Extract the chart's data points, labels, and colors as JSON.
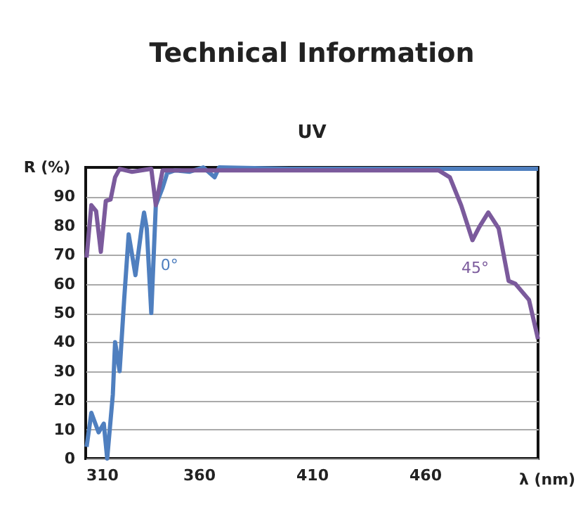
{
  "chart_data": {
    "type": "line",
    "title": "Technical Information",
    "subtitle": "UV",
    "xlabel": "λ (nm)",
    "ylabel": "R (%)",
    "xlim": [
      310,
      510
    ],
    "xticks": [
      310,
      360,
      410,
      460
    ],
    "ylim": [
      0,
      100
    ],
    "yticks": [
      0,
      10,
      20,
      30,
      40,
      50,
      60,
      70,
      80,
      90
    ],
    "grid": "y",
    "marker": "none",
    "line_style": "solid",
    "series": [
      {
        "name": "0°",
        "color": "#4f7fbf",
        "x": [
          310.4,
          312.5,
          315.7,
          318,
          319.5,
          322,
          323,
          325,
          327,
          329,
          332,
          334.7,
          335.8,
          337,
          339,
          341,
          344,
          346,
          349.5,
          356,
          362,
          367,
          369,
          400,
          450,
          510
        ],
        "values": [
          4,
          15.7,
          9,
          12,
          0,
          22,
          40,
          30,
          54.5,
          77,
          63,
          79,
          84.5,
          79,
          50,
          87,
          93,
          98,
          99,
          98.5,
          100,
          96.6,
          100,
          99.5,
          99.5,
          99.5
        ]
      },
      {
        "name": "45°",
        "color": "#7b5a9c",
        "x": [
          310.4,
          312.5,
          314.6,
          316.7,
          318.9,
          321,
          323,
          325,
          330.5,
          339,
          341,
          344,
          400,
          466,
          471,
          476,
          481,
          484,
          488,
          492.6,
          497,
          500,
          506,
          510
        ],
        "values": [
          69,
          87,
          85,
          71,
          88.5,
          89,
          96.6,
          99.5,
          98.5,
          99.5,
          87,
          99,
          99,
          99,
          96.6,
          87,
          75,
          79.5,
          84.5,
          79,
          61,
          60,
          54.5,
          41
        ]
      }
    ]
  }
}
